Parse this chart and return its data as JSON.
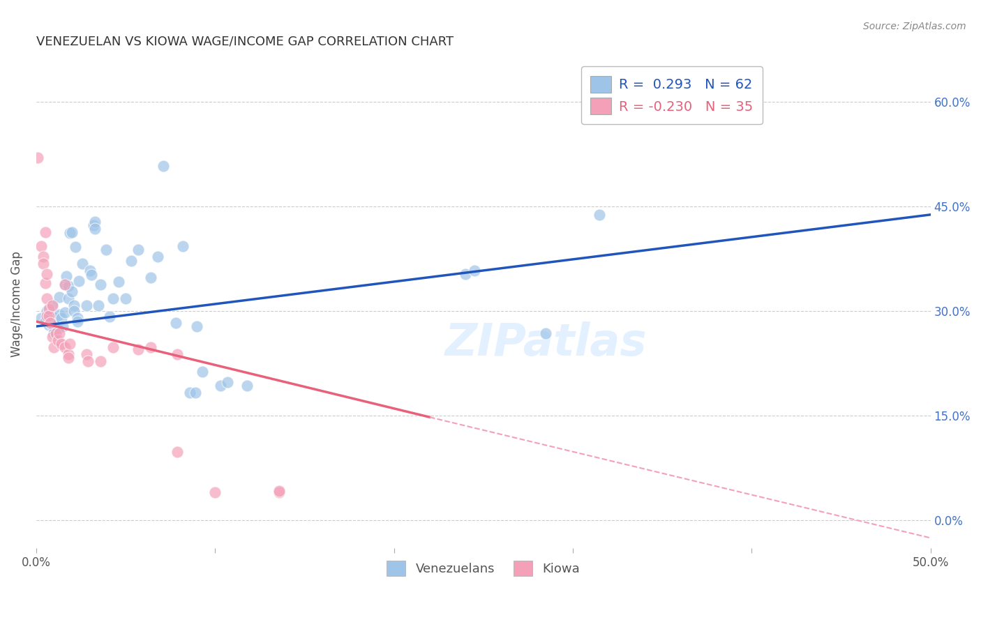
{
  "title": "VENEZUELAN VS KIOWA WAGE/INCOME GAP CORRELATION CHART",
  "source": "Source: ZipAtlas.com",
  "ylabel": "Wage/Income Gap",
  "xlim": [
    0.0,
    0.5
  ],
  "ylim": [
    -0.04,
    0.66
  ],
  "ytick_labels": [
    "0.0%",
    "15.0%",
    "30.0%",
    "45.0%",
    "60.0%"
  ],
  "ytick_vals": [
    0.0,
    0.15,
    0.3,
    0.45,
    0.6
  ],
  "xtick_vals": [
    0.0,
    0.1,
    0.2,
    0.3,
    0.4,
    0.5
  ],
  "xtick_labels": [
    "0.0%",
    "",
    "",
    "",
    "",
    "50.0%"
  ],
  "background_color": "#ffffff",
  "grid_color": "#cccccc",
  "title_color": "#333333",
  "source_color": "#888888",
  "right_axis_color": "#4472c4",
  "venezuelan_color": "#9ec4e8",
  "kiowa_color": "#f4a0b8",
  "venezuelan_line_color": "#2255bb",
  "kiowa_line_color": "#e8607a",
  "kiowa_dash_color": "#f4a0b8",
  "R_venezuelan": 0.293,
  "N_venezuelan": 62,
  "R_kiowa": -0.23,
  "N_kiowa": 35,
  "venezuelan_scatter": [
    [
      0.003,
      0.29
    ],
    [
      0.005,
      0.285
    ],
    [
      0.006,
      0.3
    ],
    [
      0.007,
      0.28
    ],
    [
      0.008,
      0.295
    ],
    [
      0.009,
      0.31
    ],
    [
      0.009,
      0.285
    ],
    [
      0.01,
      0.275
    ],
    [
      0.01,
      0.268
    ],
    [
      0.011,
      0.29
    ],
    [
      0.012,
      0.282
    ],
    [
      0.012,
      0.275
    ],
    [
      0.013,
      0.295
    ],
    [
      0.013,
      0.32
    ],
    [
      0.014,
      0.29
    ],
    [
      0.015,
      0.278
    ],
    [
      0.016,
      0.298
    ],
    [
      0.016,
      0.338
    ],
    [
      0.017,
      0.35
    ],
    [
      0.018,
      0.336
    ],
    [
      0.018,
      0.318
    ],
    [
      0.019,
      0.412
    ],
    [
      0.02,
      0.413
    ],
    [
      0.02,
      0.328
    ],
    [
      0.021,
      0.308
    ],
    [
      0.021,
      0.3
    ],
    [
      0.022,
      0.392
    ],
    [
      0.023,
      0.29
    ],
    [
      0.023,
      0.285
    ],
    [
      0.024,
      0.343
    ],
    [
      0.026,
      0.368
    ],
    [
      0.028,
      0.308
    ],
    [
      0.03,
      0.358
    ],
    [
      0.031,
      0.352
    ],
    [
      0.032,
      0.423
    ],
    [
      0.033,
      0.428
    ],
    [
      0.033,
      0.418
    ],
    [
      0.035,
      0.308
    ],
    [
      0.036,
      0.338
    ],
    [
      0.039,
      0.388
    ],
    [
      0.041,
      0.292
    ],
    [
      0.043,
      0.318
    ],
    [
      0.046,
      0.342
    ],
    [
      0.05,
      0.318
    ],
    [
      0.053,
      0.372
    ],
    [
      0.057,
      0.388
    ],
    [
      0.064,
      0.348
    ],
    [
      0.068,
      0.378
    ],
    [
      0.071,
      0.508
    ],
    [
      0.078,
      0.283
    ],
    [
      0.082,
      0.393
    ],
    [
      0.086,
      0.183
    ],
    [
      0.089,
      0.183
    ],
    [
      0.09,
      0.278
    ],
    [
      0.093,
      0.213
    ],
    [
      0.103,
      0.193
    ],
    [
      0.107,
      0.198
    ],
    [
      0.118,
      0.193
    ],
    [
      0.24,
      0.353
    ],
    [
      0.245,
      0.358
    ],
    [
      0.285,
      0.268
    ],
    [
      0.315,
      0.438
    ]
  ],
  "kiowa_scatter": [
    [
      0.001,
      0.52
    ],
    [
      0.003,
      0.393
    ],
    [
      0.004,
      0.378
    ],
    [
      0.004,
      0.368
    ],
    [
      0.005,
      0.34
    ],
    [
      0.005,
      0.413
    ],
    [
      0.006,
      0.293
    ],
    [
      0.006,
      0.318
    ],
    [
      0.006,
      0.353
    ],
    [
      0.007,
      0.303
    ],
    [
      0.007,
      0.293
    ],
    [
      0.008,
      0.283
    ],
    [
      0.009,
      0.263
    ],
    [
      0.009,
      0.308
    ],
    [
      0.01,
      0.248
    ],
    [
      0.011,
      0.268
    ],
    [
      0.012,
      0.258
    ],
    [
      0.013,
      0.268
    ],
    [
      0.014,
      0.253
    ],
    [
      0.016,
      0.248
    ],
    [
      0.016,
      0.338
    ],
    [
      0.018,
      0.238
    ],
    [
      0.018,
      0.233
    ],
    [
      0.019,
      0.253
    ],
    [
      0.028,
      0.238
    ],
    [
      0.029,
      0.228
    ],
    [
      0.036,
      0.228
    ],
    [
      0.043,
      0.248
    ],
    [
      0.057,
      0.245
    ],
    [
      0.064,
      0.248
    ],
    [
      0.079,
      0.098
    ],
    [
      0.079,
      0.238
    ],
    [
      0.1,
      0.04
    ],
    [
      0.136,
      0.04
    ],
    [
      0.136,
      0.042
    ]
  ],
  "venezuelan_line": {
    "x0": 0.0,
    "y0": 0.278,
    "x1": 0.5,
    "y1": 0.438
  },
  "kiowa_line_solid": {
    "x0": 0.0,
    "y0": 0.285,
    "x1": 0.22,
    "y1": 0.148
  },
  "kiowa_line_dash": {
    "x0": 0.22,
    "y0": 0.148,
    "x1": 0.5,
    "y1": -0.025
  }
}
